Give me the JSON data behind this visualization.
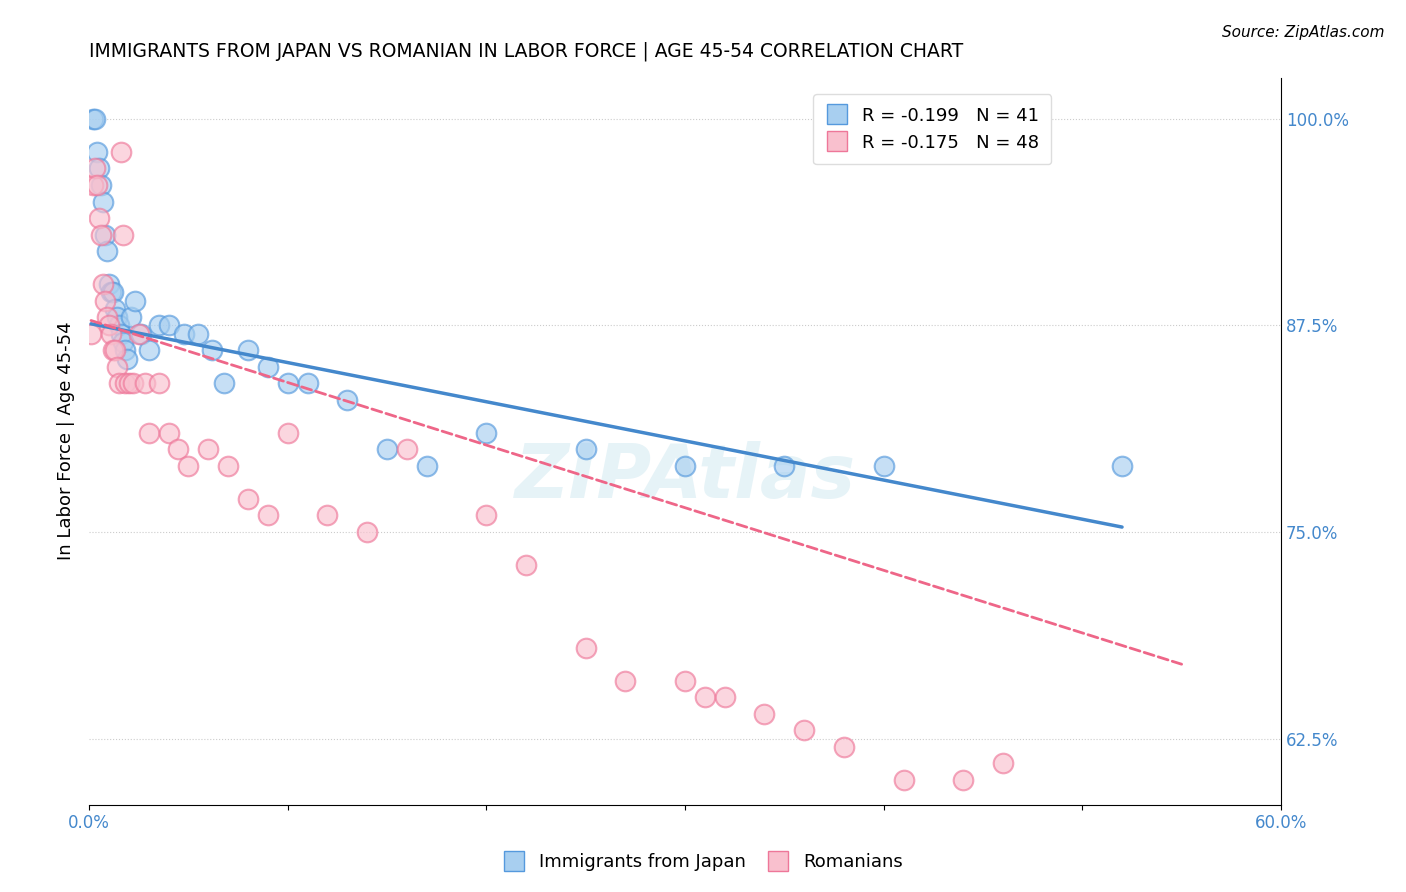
{
  "title": "IMMIGRANTS FROM JAPAN VS ROMANIAN IN LABOR FORCE | AGE 45-54 CORRELATION CHART",
  "source": "Source: ZipAtlas.com",
  "ylabel": "In Labor Force | Age 45-54",
  "xlim": [
    0.0,
    0.6
  ],
  "ylim": [
    0.585,
    1.025
  ],
  "xticks": [
    0.0,
    0.1,
    0.2,
    0.3,
    0.4,
    0.5,
    0.6
  ],
  "xtick_labels": [
    "0.0%",
    "",
    "",
    "",
    "",
    "",
    "60.0%"
  ],
  "ytick_right": [
    0.625,
    0.75,
    0.875,
    1.0
  ],
  "ytick_right_labels": [
    "62.5%",
    "75.0%",
    "87.5%",
    "100.0%"
  ],
  "japan_R": -0.199,
  "japan_N": 41,
  "romanian_R": -0.175,
  "romanian_N": 48,
  "japan_color": "#A8CFF0",
  "romanian_color": "#F9C0CE",
  "japan_edge_color": "#5599DD",
  "romanian_edge_color": "#EE7799",
  "japan_line_color": "#4488CC",
  "romanian_line_color": "#EE6688",
  "legend_label_japan": "Immigrants from Japan",
  "legend_label_romanian": "Romanians",
  "watermark": "ZIPAtlas",
  "japan_x": [
    0.002,
    0.003,
    0.004,
    0.005,
    0.006,
    0.007,
    0.008,
    0.009,
    0.01,
    0.011,
    0.012,
    0.013,
    0.014,
    0.015,
    0.016,
    0.017,
    0.018,
    0.019,
    0.021,
    0.023,
    0.026,
    0.03,
    0.035,
    0.04,
    0.048,
    0.055,
    0.062,
    0.068,
    0.08,
    0.09,
    0.1,
    0.11,
    0.13,
    0.15,
    0.17,
    0.2,
    0.25,
    0.3,
    0.35,
    0.4,
    0.52
  ],
  "japan_y": [
    1.0,
    1.0,
    0.98,
    0.97,
    0.96,
    0.95,
    0.93,
    0.92,
    0.9,
    0.895,
    0.895,
    0.885,
    0.88,
    0.875,
    0.87,
    0.865,
    0.86,
    0.855,
    0.88,
    0.89,
    0.87,
    0.86,
    0.875,
    0.875,
    0.87,
    0.87,
    0.86,
    0.84,
    0.86,
    0.85,
    0.84,
    0.84,
    0.83,
    0.8,
    0.79,
    0.81,
    0.8,
    0.79,
    0.79,
    0.79,
    0.79
  ],
  "romanian_x": [
    0.001,
    0.002,
    0.003,
    0.004,
    0.005,
    0.006,
    0.007,
    0.008,
    0.009,
    0.01,
    0.011,
    0.012,
    0.013,
    0.014,
    0.015,
    0.016,
    0.017,
    0.018,
    0.02,
    0.022,
    0.025,
    0.028,
    0.03,
    0.035,
    0.04,
    0.045,
    0.05,
    0.06,
    0.07,
    0.08,
    0.09,
    0.1,
    0.12,
    0.14,
    0.16,
    0.2,
    0.22,
    0.25,
    0.27,
    0.3,
    0.31,
    0.32,
    0.34,
    0.36,
    0.38,
    0.41,
    0.44,
    0.46
  ],
  "romanian_y": [
    0.87,
    0.96,
    0.97,
    0.96,
    0.94,
    0.93,
    0.9,
    0.89,
    0.88,
    0.875,
    0.87,
    0.86,
    0.86,
    0.85,
    0.84,
    0.98,
    0.93,
    0.84,
    0.84,
    0.84,
    0.87,
    0.84,
    0.81,
    0.84,
    0.81,
    0.8,
    0.79,
    0.8,
    0.79,
    0.77,
    0.76,
    0.81,
    0.76,
    0.75,
    0.8,
    0.76,
    0.73,
    0.68,
    0.66,
    0.66,
    0.65,
    0.65,
    0.64,
    0.63,
    0.62,
    0.6,
    0.6,
    0.61
  ],
  "japan_line_x": [
    0.001,
    0.52
  ],
  "japan_line_y": [
    0.876,
    0.753
  ],
  "romanian_line_x": [
    0.001,
    0.55
  ],
  "romanian_line_y": [
    0.878,
    0.67
  ]
}
